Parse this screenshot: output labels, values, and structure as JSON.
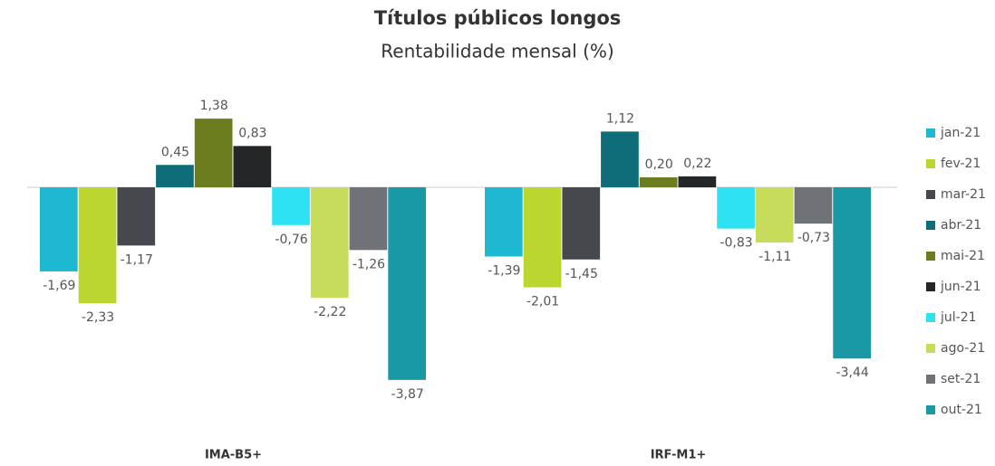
{
  "chart_data": {
    "type": "bar",
    "title": "Títulos públicos longos",
    "subtitle": "Rentabilidade mensal (%)",
    "categories": [
      "IMA-B5+",
      "IRF-M1+"
    ],
    "ylim": [
      -4.5,
      2.5
    ],
    "legend": "right",
    "series": [
      {
        "name": "jan-21",
        "color": "#1fb8d0",
        "values": [
          -1.69,
          -1.39
        ],
        "value_labels": [
          "-1,69",
          "-1,39"
        ]
      },
      {
        "name": "fev-21",
        "color": "#bcd630",
        "values": [
          -2.33,
          -2.01
        ],
        "value_labels": [
          "-2,33",
          "-2,01"
        ]
      },
      {
        "name": "mar-21",
        "color": "#45494d",
        "values": [
          -1.17,
          -1.45
        ],
        "value_labels": [
          "-1,17",
          "-1,45"
        ]
      },
      {
        "name": "abr-21",
        "color": "#0e6d78",
        "values": [
          0.45,
          1.12
        ],
        "value_labels": [
          "0,45",
          "1,12"
        ]
      },
      {
        "name": "mai-21",
        "color": "#6b7d1f",
        "values": [
          1.38,
          0.2
        ],
        "value_labels": [
          "1,38",
          "0,20"
        ]
      },
      {
        "name": "jun-21",
        "color": "#252628",
        "values": [
          0.83,
          0.22
        ],
        "value_labels": [
          "0,83",
          "0,22"
        ]
      },
      {
        "name": "jul-21",
        "color": "#2ee2f2",
        "values": [
          -0.76,
          -0.83
        ],
        "value_labels": [
          "-0,76",
          "-0,83"
        ]
      },
      {
        "name": "ago-21",
        "color": "#c8dc5c",
        "values": [
          -2.22,
          -1.11
        ],
        "value_labels": [
          "-2,22",
          "-1,11"
        ]
      },
      {
        "name": "set-21",
        "color": "#6f7378",
        "values": [
          -1.26,
          -0.73
        ],
        "value_labels": [
          "-1,26",
          "-0,73"
        ]
      },
      {
        "name": "out-21",
        "color": "#1a98a6",
        "values": [
          -3.87,
          -3.44
        ],
        "value_labels": [
          "-3,87",
          "-3,44"
        ]
      }
    ]
  }
}
